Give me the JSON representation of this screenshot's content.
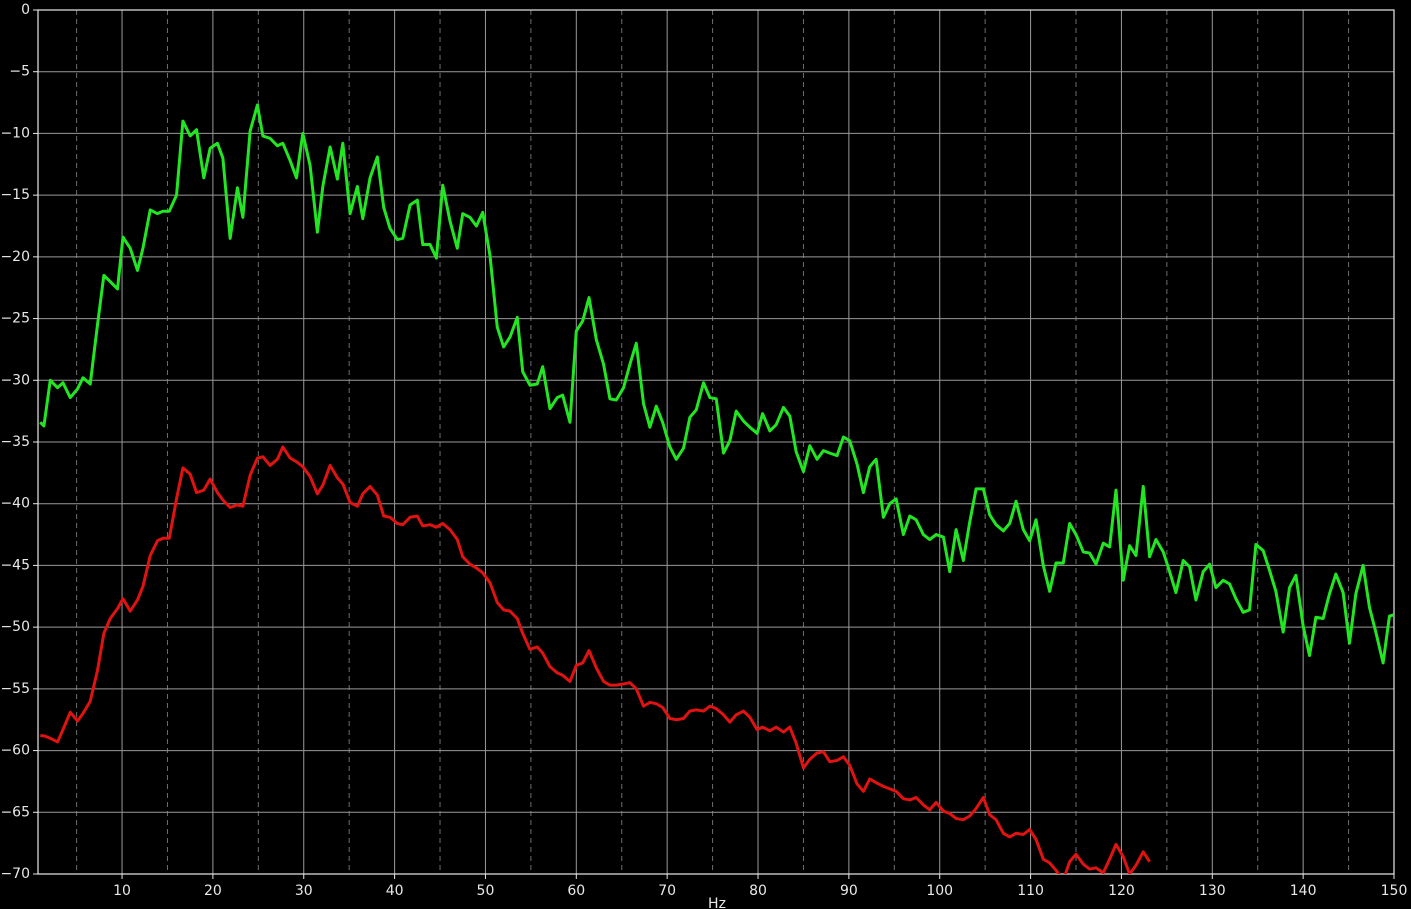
{
  "chart_data": {
    "type": "line",
    "xlabel": "Hz",
    "xlim": [
      0.75,
      150
    ],
    "ylim": [
      -70,
      0
    ],
    "xticks": [
      10,
      20,
      30,
      40,
      50,
      60,
      70,
      80,
      90,
      100,
      110,
      120,
      130,
      140,
      150
    ],
    "xminorticks": [
      5,
      15,
      25,
      35,
      45,
      55,
      65,
      75,
      85,
      95,
      105,
      115,
      125,
      135,
      145
    ],
    "yticks": [
      0,
      {
        "value": -5,
        "label": "−5"
      },
      {
        "value": -10,
        "label": "−10"
      },
      {
        "value": -15,
        "label": "−15"
      },
      {
        "value": -20,
        "label": "−20"
      },
      {
        "value": -25,
        "label": "−25"
      },
      {
        "value": -30,
        "label": "−30"
      },
      {
        "value": -35,
        "label": "−35"
      },
      {
        "value": -40,
        "label": "−40"
      },
      {
        "value": -45,
        "label": "−45"
      },
      {
        "value": -50,
        "label": "−50"
      },
      {
        "value": -55,
        "label": "−55"
      },
      {
        "value": -60,
        "label": "−60"
      },
      {
        "value": -65,
        "label": "−65"
      },
      {
        "value": -70,
        "label": "−70"
      }
    ],
    "grid": true,
    "background": "#000000",
    "x": [
      1.0,
      1.4,
      2.1,
      2.9,
      3.5,
      4.3,
      5.1,
      5.7,
      6.5,
      7.3,
      8.0,
      8.7,
      9.5,
      10.1,
      10.9,
      11.7,
      12.3,
      13.1,
      13.9,
      14.5,
      15.2,
      16.0,
      16.7,
      17.5,
      18.2,
      19.0,
      19.7,
      20.5,
      21.1,
      21.9,
      22.7,
      23.3,
      24.1,
      24.9,
      25.5,
      26.3,
      27.1,
      27.7,
      28.5,
      29.2,
      29.9,
      30.7,
      31.5,
      32.1,
      32.9,
      33.7,
      34.3,
      35.1,
      35.9,
      36.5,
      37.3,
      38.1,
      38.8,
      39.5,
      40.3,
      40.9,
      41.7,
      42.5,
      43.1,
      43.9,
      44.6,
      45.3,
      46.1,
      46.9,
      47.5,
      48.3,
      49.0,
      49.7,
      50.5,
      51.3,
      52.0,
      52.7,
      53.5,
      54.1,
      54.9,
      55.7,
      56.3,
      57.1,
      57.9,
      58.5,
      59.3,
      60.0,
      60.7,
      61.4,
      62.2,
      63.0,
      63.7,
      64.4,
      65.2,
      65.9,
      66.6,
      67.4,
      68.1,
      68.8,
      69.5,
      70.3,
      71.0,
      71.8,
      72.5,
      73.2,
      74.0,
      74.7,
      75.4,
      76.2,
      76.9,
      77.6,
      78.4,
      79.1,
      79.9,
      80.5,
      81.3,
      82.0,
      82.8,
      83.5,
      84.2,
      85.0,
      85.7,
      86.5,
      87.2,
      87.9,
      88.7,
      89.4,
      90.1,
      90.9,
      91.6,
      92.3,
      93.0,
      93.8,
      94.5,
      95.2,
      96.0,
      96.7,
      97.4,
      98.2,
      98.9,
      99.6,
      100.4,
      101.1,
      101.8,
      102.6,
      103.3,
      104.0,
      104.8,
      105.5,
      106.2,
      107.0,
      107.7,
      108.4,
      109.2,
      109.9,
      110.6,
      111.4,
      112.1,
      112.8,
      113.6,
      114.3,
      115.0,
      115.8,
      116.5,
      117.2,
      118.0,
      118.7,
      119.4,
      120.2,
      120.9,
      121.6,
      122.4,
      123.1,
      123.8,
      124.6,
      125.3,
      126.0,
      126.8,
      127.5,
      128.2,
      129.0,
      129.7,
      130.4,
      131.2,
      131.9,
      132.6,
      133.4,
      134.1,
      134.8,
      135.6,
      136.3,
      137.0,
      137.8,
      138.5,
      139.2,
      140.0,
      140.7,
      141.4,
      142.2,
      142.9,
      143.6,
      144.4,
      145.1,
      145.8,
      146.6,
      147.3,
      148.0,
      148.8,
      149.5,
      150.0
    ],
    "series": [
      {
        "color": "#22e622",
        "values": [
          -33.4,
          -33.7,
          -30.0,
          -30.6,
          -30.2,
          -31.4,
          -30.7,
          -29.8,
          -30.3,
          -25.5,
          -21.5,
          -22.0,
          -22.6,
          -18.4,
          -19.3,
          -21.1,
          -19.3,
          -16.2,
          -16.5,
          -16.3,
          -16.3,
          -15.0,
          -9.0,
          -10.2,
          -9.7,
          -13.6,
          -11.2,
          -10.8,
          -12.0,
          -18.5,
          -14.4,
          -16.8,
          -9.8,
          -7.7,
          -10.2,
          -10.4,
          -11.0,
          -10.8,
          -12.2,
          -13.6,
          -10.0,
          -12.6,
          -18.0,
          -14.3,
          -11.1,
          -13.7,
          -10.8,
          -16.5,
          -14.3,
          -16.9,
          -13.6,
          -11.9,
          -16.0,
          -17.7,
          -18.6,
          -18.5,
          -15.8,
          -15.4,
          -19.0,
          -19.0,
          -20.1,
          -14.2,
          -17.1,
          -19.3,
          -16.5,
          -16.8,
          -17.5,
          -16.4,
          -19.9,
          -25.7,
          -27.3,
          -26.5,
          -24.9,
          -29.3,
          -30.4,
          -30.3,
          -28.9,
          -32.3,
          -31.4,
          -31.2,
          -33.4,
          -26.0,
          -25.2,
          -23.3,
          -26.7,
          -28.7,
          -31.5,
          -31.6,
          -30.6,
          -28.7,
          -27.0,
          -31.9,
          -33.8,
          -32.1,
          -33.4,
          -35.4,
          -36.4,
          -35.5,
          -33.0,
          -32.4,
          -30.2,
          -31.4,
          -31.5,
          -35.9,
          -34.9,
          -32.5,
          -33.3,
          -33.8,
          -34.3,
          -32.7,
          -34.1,
          -33.6,
          -32.2,
          -32.9,
          -35.8,
          -37.4,
          -35.3,
          -36.4,
          -35.7,
          -35.9,
          -36.1,
          -34.6,
          -34.9,
          -36.8,
          -39.1,
          -37.0,
          -36.4,
          -41.1,
          -40.0,
          -39.6,
          -42.5,
          -41.0,
          -41.3,
          -42.5,
          -42.9,
          -42.5,
          -42.7,
          -45.5,
          -42.1,
          -44.6,
          -41.5,
          -38.8,
          -38.8,
          -40.9,
          -41.7,
          -42.2,
          -41.6,
          -39.8,
          -42.1,
          -43.0,
          -41.3,
          -45.0,
          -47.1,
          -44.8,
          -44.8,
          -41.6,
          -42.5,
          -43.9,
          -44.0,
          -44.9,
          -43.2,
          -43.5,
          -38.9,
          -46.2,
          -43.4,
          -44.2,
          -38.6,
          -44.3,
          -42.9,
          -43.9,
          -45.5,
          -47.2,
          -44.6,
          -45.1,
          -47.8,
          -45.5,
          -44.9,
          -46.8,
          -46.2,
          -46.5,
          -47.7,
          -48.8,
          -48.6,
          -43.3,
          -43.8,
          -45.4,
          -47.1,
          -50.4,
          -46.8,
          -45.8,
          -49.9,
          -52.3,
          -49.2,
          -49.3,
          -47.3,
          -45.7,
          -47.2,
          -51.3,
          -47.3,
          -45.0,
          -48.4,
          -50.4,
          -52.9,
          -49.1,
          -49.0
        ]
      },
      {
        "color": "#e01212",
        "values": [
          -58.8,
          -58.8,
          -59.0,
          -59.3,
          -58.3,
          -56.9,
          -57.6,
          -57.0,
          -56.0,
          -53.5,
          -50.5,
          -49.3,
          -48.5,
          -47.7,
          -48.7,
          -47.8,
          -46.7,
          -44.2,
          -43.0,
          -42.8,
          -42.8,
          -39.6,
          -37.1,
          -37.6,
          -39.1,
          -38.9,
          -38.0,
          -39.1,
          -39.7,
          -40.3,
          -40.1,
          -40.2,
          -37.7,
          -36.3,
          -36.2,
          -36.9,
          -36.4,
          -35.4,
          -36.3,
          -36.6,
          -37.0,
          -37.8,
          -39.2,
          -38.5,
          -36.9,
          -37.9,
          -38.4,
          -39.9,
          -40.2,
          -39.2,
          -38.6,
          -39.3,
          -41.0,
          -41.1,
          -41.6,
          -41.7,
          -41.1,
          -41.0,
          -41.8,
          -41.7,
          -41.9,
          -41.6,
          -42.1,
          -42.9,
          -44.3,
          -44.9,
          -45.2,
          -45.6,
          -46.4,
          -48.0,
          -48.6,
          -48.7,
          -49.3,
          -50.5,
          -51.8,
          -51.6,
          -52.1,
          -53.2,
          -53.7,
          -53.9,
          -54.4,
          -53.1,
          -52.9,
          -51.9,
          -53.3,
          -54.4,
          -54.7,
          -54.7,
          -54.6,
          -54.5,
          -55.0,
          -56.4,
          -56.1,
          -56.2,
          -56.5,
          -57.4,
          -57.5,
          -57.4,
          -56.8,
          -56.7,
          -56.8,
          -56.4,
          -56.6,
          -57.1,
          -57.7,
          -57.1,
          -56.8,
          -57.3,
          -58.3,
          -58.1,
          -58.4,
          -58.1,
          -58.5,
          -58.1,
          -59.4,
          -61.4,
          -60.7,
          -60.2,
          -60.1,
          -60.9,
          -60.8,
          -60.5,
          -61.2,
          -62.7,
          -63.3,
          -62.3,
          -62.6,
          -62.9,
          -63.1,
          -63.3,
          -63.9,
          -64.0,
          -63.8,
          -64.4,
          -64.8,
          -64.2,
          -64.9,
          -65.1,
          -65.5,
          -65.6,
          -65.3,
          -64.7,
          -63.8,
          -65.2,
          -65.6,
          -66.7,
          -67.0,
          -66.7,
          -66.8,
          -66.4,
          -67.2,
          -68.8,
          -69.1,
          -69.7,
          -70.5,
          -69.0,
          -68.4,
          -69.2,
          -69.6,
          -69.5,
          -69.9,
          -68.8,
          -67.6,
          -68.6,
          -70.0,
          -69.3,
          -68.2,
          -69.0,
          null,
          null,
          null,
          null,
          null,
          null,
          null,
          null,
          null,
          null,
          null,
          null,
          null,
          null,
          null,
          null,
          null,
          null,
          null,
          null,
          null,
          null,
          null,
          null,
          null,
          null,
          null,
          null,
          null,
          null,
          null,
          null,
          null,
          null,
          null,
          null,
          null
        ]
      }
    ]
  }
}
